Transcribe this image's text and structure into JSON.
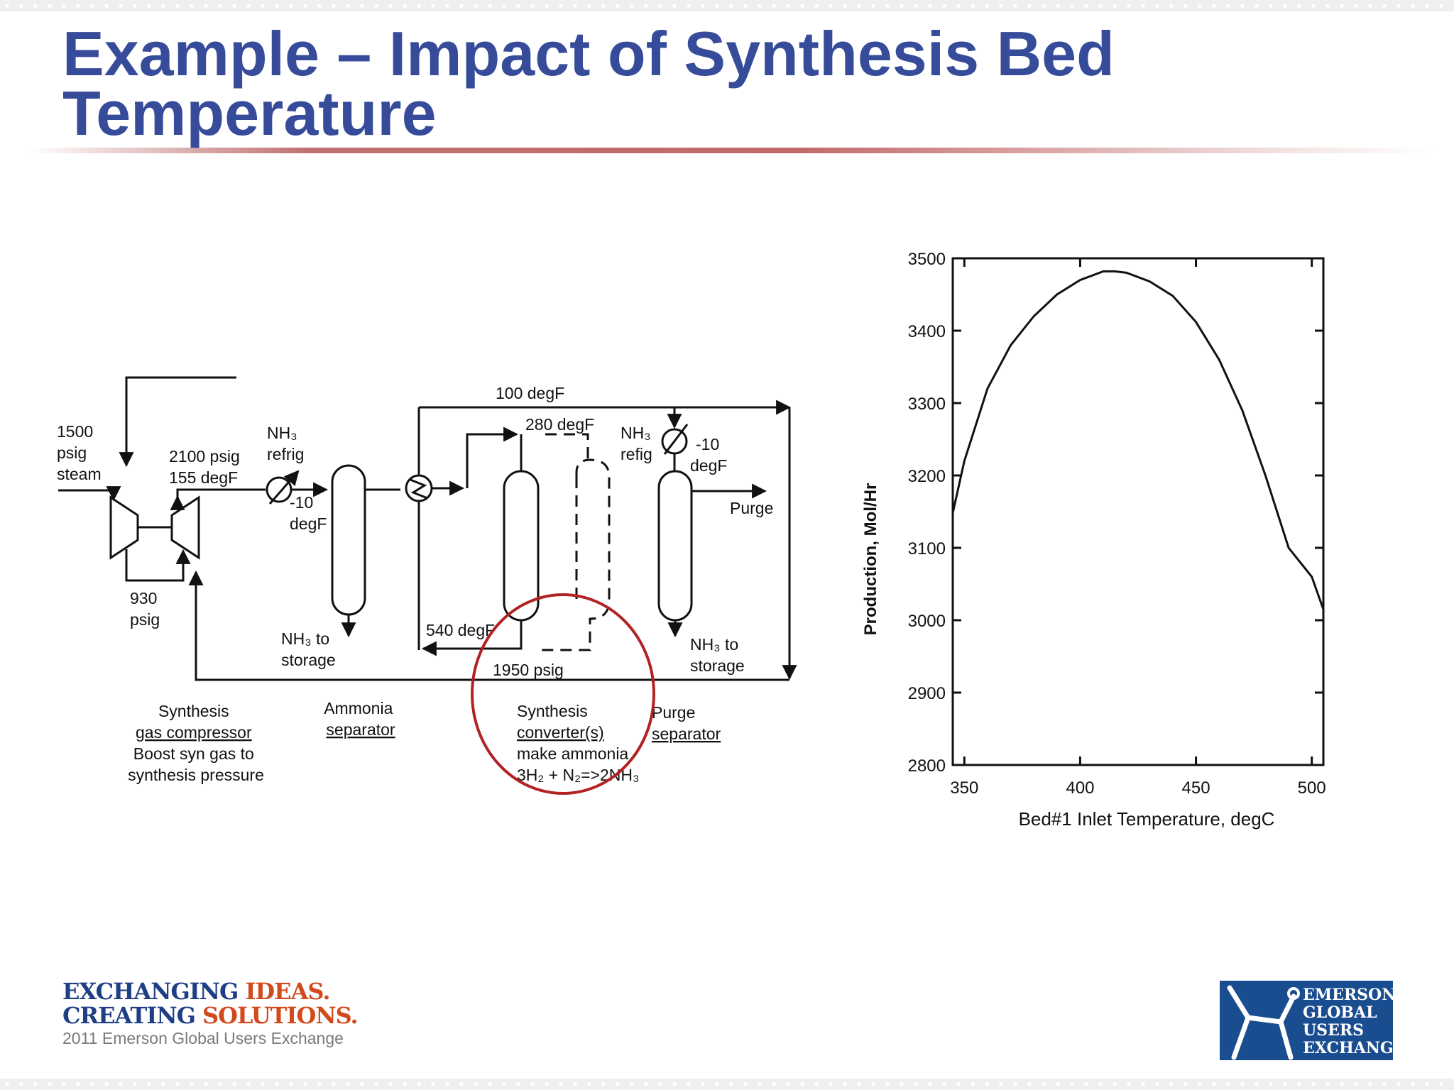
{
  "title": "Example – Impact of Synthesis Bed Temperature",
  "diagram": {
    "labels": {
      "steam": [
        "1500",
        "psig",
        "steam"
      ],
      "compressor_discharge": [
        "2100 psig",
        "155 degF"
      ],
      "interstage": [
        "930",
        "psig"
      ],
      "refrig1": [
        "NH₃",
        "refrig"
      ],
      "refrig1_temp": [
        "-10",
        "degF"
      ],
      "loop_top": "100 degF",
      "converter_in": "280 degF",
      "converter_out": "540 degF",
      "loop_pressure": "1950 psig",
      "refrig2": [
        "NH₃",
        "refig"
      ],
      "refrig2_temp": [
        "-10",
        "degF"
      ],
      "purge": "Purge",
      "nh3_storage1": [
        "NH₃ to",
        "storage"
      ],
      "nh3_storage2": [
        "NH₃ to",
        "storage"
      ]
    },
    "captions": {
      "compressor": [
        "Synthesis",
        "gas compressor",
        "Boost syn gas to",
        "synthesis pressure"
      ],
      "separator": [
        "Ammonia",
        "separator"
      ],
      "converter": [
        "Synthesis",
        "converter(s)",
        "make ammonia",
        "3H₂ + N₂=>2NH₃"
      ],
      "purge_sep": [
        "Purge",
        "separator"
      ]
    },
    "highlight_color": "#b32222"
  },
  "chart_data": {
    "type": "line",
    "title": "",
    "xlabel": "Bed#1 Inlet Temperature, degC",
    "ylabel": "Production, Mol/Hr",
    "xlim": [
      345,
      505
    ],
    "ylim": [
      2800,
      3500
    ],
    "xticks": [
      350,
      400,
      450,
      500
    ],
    "yticks": [
      2800,
      2900,
      3000,
      3100,
      3200,
      3300,
      3400,
      3500
    ],
    "grid": false,
    "series": [
      {
        "x": [
          345,
          350,
          360,
          370,
          380,
          390,
          400,
          410,
          415,
          420,
          430,
          440,
          450,
          460,
          470,
          480,
          490,
          500,
          505
        ],
        "y": [
          3148,
          3220,
          3320,
          3380,
          3420,
          3450,
          3470,
          3482,
          3482,
          3480,
          3468,
          3448,
          3412,
          3360,
          3290,
          3200,
          3100,
          3060,
          3015
        ]
      }
    ]
  },
  "footer": {
    "brand_line1_a": "EXCHANGING ",
    "brand_line1_b": "IDEAS.",
    "brand_line2_a": "CREATING ",
    "brand_line2_b": "SOLUTIONS.",
    "subtitle": "2011 Emerson Global Users Exchange",
    "logo_words": [
      "EMERSON",
      "GLOBAL",
      "USERS",
      "EXCHANGE"
    ]
  }
}
